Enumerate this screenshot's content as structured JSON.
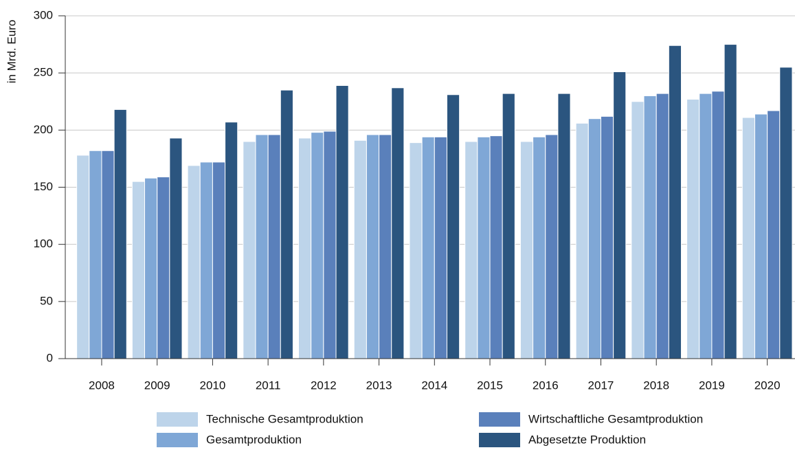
{
  "chart_data": {
    "type": "bar",
    "y_label": "in Mrd. Euro",
    "categories": [
      "2008",
      "2009",
      "2010",
      "2011",
      "2012",
      "2013",
      "2014",
      "2015",
      "2016",
      "2017",
      "2018",
      "2019",
      "2020"
    ],
    "series": [
      {
        "name": "Technische Gesamtproduktion",
        "color": "#bdd4ea",
        "values": [
          178,
          155,
          169,
          190,
          193,
          191,
          189,
          190,
          190,
          206,
          225,
          227,
          211
        ]
      },
      {
        "name": "Gesamtproduktion",
        "color": "#7fa7d6",
        "values": [
          182,
          158,
          172,
          196,
          198,
          196,
          194,
          194,
          194,
          210,
          230,
          232,
          214
        ]
      },
      {
        "name": "Wirtschaftliche Gesamtproduktion",
        "color": "#5a80bb",
        "values": [
          182,
          159,
          172,
          196,
          199,
          196,
          194,
          195,
          196,
          212,
          232,
          234,
          217
        ]
      },
      {
        "name": "Abgesetzte Produktion",
        "color": "#2b557f",
        "values": [
          218,
          193,
          207,
          235,
          239,
          237,
          231,
          232,
          232,
          251,
          274,
          275,
          255
        ]
      }
    ],
    "ylim": [
      0,
      300
    ],
    "yticks": [
      0,
      50,
      100,
      150,
      200,
      250,
      300
    ],
    "grid": true,
    "legend": "bottom"
  }
}
